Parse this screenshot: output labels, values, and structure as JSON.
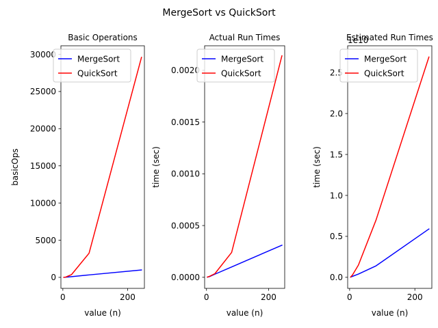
{
  "figure_title": "MergeSort vs QuickSort",
  "chart_data": [
    {
      "type": "line",
      "title": "Basic Operations",
      "xlabel": "value (n)",
      "ylabel": "basicOps",
      "xlim": [
        -6,
        252
      ],
      "ylim": [
        -1480,
        31150
      ],
      "xticks": [
        0,
        200
      ],
      "yticks": [
        0,
        5000,
        10000,
        15000,
        20000,
        25000,
        30000
      ],
      "tick_labels_y": [
        "0",
        "5000",
        "10000",
        "15000",
        "20000",
        "25000",
        "30000"
      ],
      "offset_text": "",
      "legend": "upper-left",
      "grid": false,
      "series": [
        {
          "name": "MergeSort",
          "color": "#0000ff",
          "x": [
            3,
            9,
            27,
            81,
            243
          ],
          "y": [
            5,
            20,
            95,
            330,
            1000
          ]
        },
        {
          "name": "QuickSort",
          "color": "#ff0000",
          "x": [
            3,
            9,
            27,
            81,
            243
          ],
          "y": [
            5,
            40,
            380,
            3250,
            29600
          ]
        }
      ]
    },
    {
      "type": "line",
      "title": "Actual Run Times",
      "xlabel": "value (n)",
      "ylabel": "time (sec)",
      "xlim": [
        -6,
        252
      ],
      "ylim": [
        -0.000107,
        0.002237
      ],
      "xticks": [
        0,
        200
      ],
      "yticks": [
        0.0,
        0.0005,
        0.001,
        0.0015,
        0.002
      ],
      "tick_labels_y": [
        "0.0000",
        "0.0005",
        "0.0010",
        "0.0015",
        "0.0020"
      ],
      "offset_text": "",
      "legend": "upper-left",
      "grid": false,
      "series": [
        {
          "name": "MergeSort",
          "color": "#0000ff",
          "x": [
            3,
            9,
            27,
            81,
            243
          ],
          "y": [
            2e-06,
            6e-06,
            3e-05,
            0.0001,
            0.00031
          ]
        },
        {
          "name": "QuickSort",
          "color": "#ff0000",
          "x": [
            3,
            9,
            27,
            81,
            243
          ],
          "y": [
            2e-06,
            8e-06,
            3.5e-05,
            0.00024,
            0.00214
          ]
        }
      ]
    },
    {
      "type": "line",
      "title": "Estimated Run Times",
      "xlabel": "value (n)",
      "ylabel": "time (sec)",
      "xlim": [
        -6,
        252
      ],
      "ylim": [
        -0.135,
        2.827
      ],
      "xticks": [
        0,
        200
      ],
      "yticks": [
        0.0,
        0.5,
        1.0,
        1.5,
        2.0,
        2.5
      ],
      "tick_labels_y": [
        "0.0",
        "0.5",
        "1.0",
        "1.5",
        "2.0",
        "2.5"
      ],
      "offset_text": "1e10",
      "legend": "upper-left",
      "grid": false,
      "series": [
        {
          "name": "MergeSort",
          "color": "#0000ff",
          "x": [
            3,
            9,
            27,
            81,
            243
          ],
          "y": [
            0.003,
            0.012,
            0.04,
            0.14,
            0.59
          ]
        },
        {
          "name": "QuickSort",
          "color": "#ff0000",
          "x": [
            3,
            9,
            27,
            81,
            243
          ],
          "y": [
            0.003,
            0.03,
            0.15,
            0.7,
            2.69
          ]
        }
      ]
    }
  ]
}
